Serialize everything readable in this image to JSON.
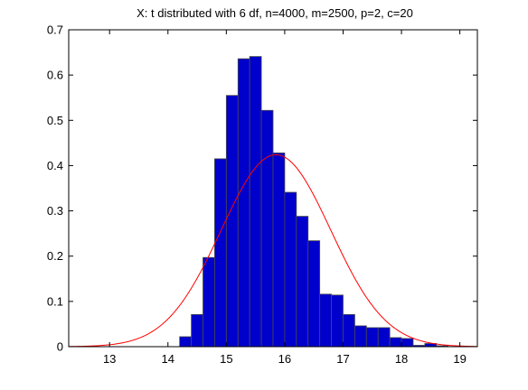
{
  "chart_data": {
    "type": "bar",
    "title": "X: t distributed with 6 df, n=4000, m=2500, p=2, c=20",
    "xlabel": "",
    "ylabel": "",
    "xlim": [
      12.3,
      19.3
    ],
    "ylim": [
      0,
      0.7
    ],
    "xticks": [
      13,
      14,
      15,
      16,
      17,
      18,
      19
    ],
    "yticks": [
      0,
      0.1,
      0.2,
      0.3,
      0.4,
      0.5,
      0.6,
      0.7
    ],
    "grid": false,
    "legend": "none",
    "histogram": {
      "bin_width": 0.2,
      "bins": [
        {
          "x0": 14.2,
          "x1": 14.4,
          "y": 0.022
        },
        {
          "x0": 14.4,
          "x1": 14.6,
          "y": 0.071
        },
        {
          "x0": 14.6,
          "x1": 14.8,
          "y": 0.197
        },
        {
          "x0": 14.8,
          "x1": 15.0,
          "y": 0.415
        },
        {
          "x0": 15.0,
          "x1": 15.2,
          "y": 0.555
        },
        {
          "x0": 15.2,
          "x1": 15.4,
          "y": 0.636
        },
        {
          "x0": 15.4,
          "x1": 15.6,
          "y": 0.641
        },
        {
          "x0": 15.6,
          "x1": 15.8,
          "y": 0.522
        },
        {
          "x0": 15.8,
          "x1": 16.0,
          "y": 0.428
        },
        {
          "x0": 16.0,
          "x1": 16.2,
          "y": 0.341
        },
        {
          "x0": 16.2,
          "x1": 16.4,
          "y": 0.288
        },
        {
          "x0": 16.4,
          "x1": 16.6,
          "y": 0.234
        },
        {
          "x0": 16.6,
          "x1": 16.8,
          "y": 0.116
        },
        {
          "x0": 16.8,
          "x1": 17.0,
          "y": 0.114
        },
        {
          "x0": 17.0,
          "x1": 17.2,
          "y": 0.071
        },
        {
          "x0": 17.2,
          "x1": 17.4,
          "y": 0.046
        },
        {
          "x0": 17.4,
          "x1": 17.6,
          "y": 0.042
        },
        {
          "x0": 17.6,
          "x1": 17.8,
          "y": 0.042
        },
        {
          "x0": 17.8,
          "x1": 18.0,
          "y": 0.02
        },
        {
          "x0": 18.0,
          "x1": 18.2,
          "y": 0.018
        },
        {
          "x0": 18.2,
          "x1": 18.4,
          "y": 0.003
        },
        {
          "x0": 18.4,
          "x1": 18.6,
          "y": 0.007
        },
        {
          "x0": 18.6,
          "x1": 18.8,
          "y": 0.002
        }
      ]
    },
    "overlay_curve": {
      "type": "line",
      "mean": 15.85,
      "sd": 0.94,
      "peak": 0.424
    },
    "colors": {
      "bar_fill": "#0000cc",
      "bar_edge": "#4a4a4a",
      "curve": "#ff0000",
      "axis": "#000000"
    }
  }
}
